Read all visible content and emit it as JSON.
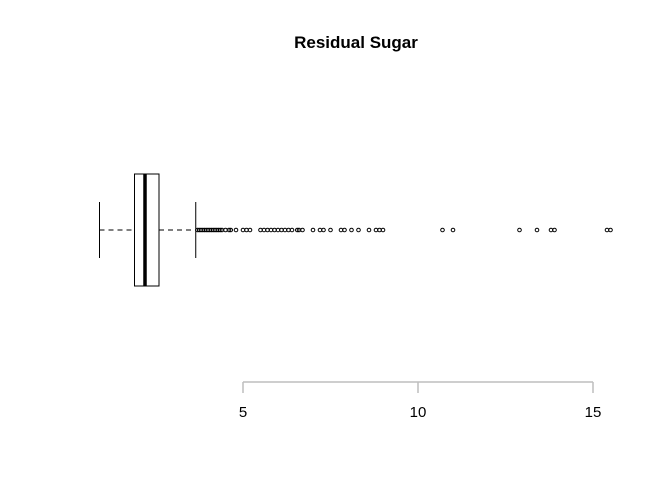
{
  "chart_data": {
    "type": "boxplot",
    "orientation": "horizontal",
    "title": "Residual Sugar",
    "xlabel": "",
    "ylabel": "",
    "xlim": [
      0.9,
      15.5
    ],
    "x_ticks": [
      5,
      10,
      15
    ],
    "x_tick_labels": [
      "5",
      "10",
      "15"
    ],
    "grid": false,
    "box": {
      "whisker_low": 0.9,
      "q1": 1.9,
      "median": 2.2,
      "q3": 2.6,
      "whisker_high": 3.65
    },
    "outliers": [
      3.7,
      3.75,
      3.8,
      3.85,
      3.9,
      3.95,
      4.0,
      4.05,
      4.1,
      4.15,
      4.2,
      4.25,
      4.3,
      4.35,
      4.4,
      4.5,
      4.6,
      4.65,
      4.8,
      5.0,
      5.1,
      5.2,
      5.5,
      5.6,
      5.7,
      5.8,
      5.9,
      6.0,
      6.1,
      6.2,
      6.3,
      6.4,
      6.55,
      6.6,
      6.7,
      7.0,
      7.2,
      7.3,
      7.5,
      7.8,
      7.9,
      8.1,
      8.3,
      8.6,
      8.8,
      8.9,
      9.0,
      10.7,
      11.0,
      12.9,
      13.4,
      13.8,
      13.9,
      15.4,
      15.5
    ],
    "colors": {
      "stroke": "#000000",
      "axis": "#bebebe"
    }
  }
}
